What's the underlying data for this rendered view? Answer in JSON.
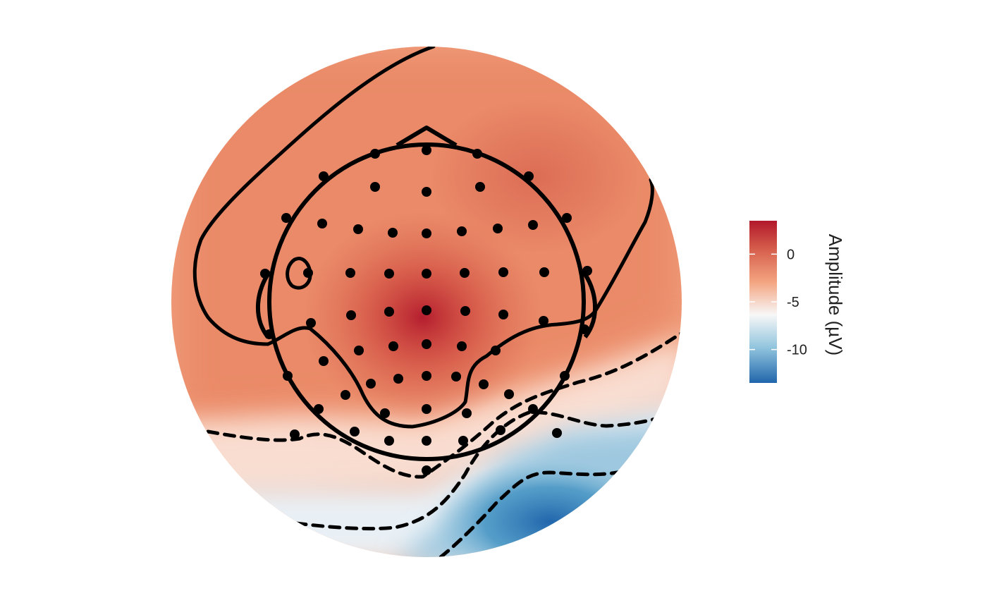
{
  "chart_data": {
    "type": "heatmap",
    "subtype": "eeg-topographic-map",
    "title": "",
    "legend": {
      "title": "Amplitude (µV)",
      "placement": "right",
      "range": [
        -13.5,
        3.5
      ],
      "ticks": [
        {
          "value": 0,
          "label": "0"
        },
        {
          "value": -5,
          "label": "-5"
        },
        {
          "value": -10,
          "label": "-10"
        }
      ],
      "colormap": [
        "#2166ac",
        "#92c5de",
        "#f7f7f7",
        "#f4a582",
        "#d6604d",
        "#b2182b"
      ]
    },
    "contours": {
      "positive_style": "solid",
      "negative_style": "dashed",
      "color": "#000000"
    },
    "peak_positive": {
      "value": 3.5,
      "location": "central"
    },
    "peak_negative": {
      "value": -13.5,
      "location": "right-posterior"
    },
    "electrode_count": 63
  }
}
